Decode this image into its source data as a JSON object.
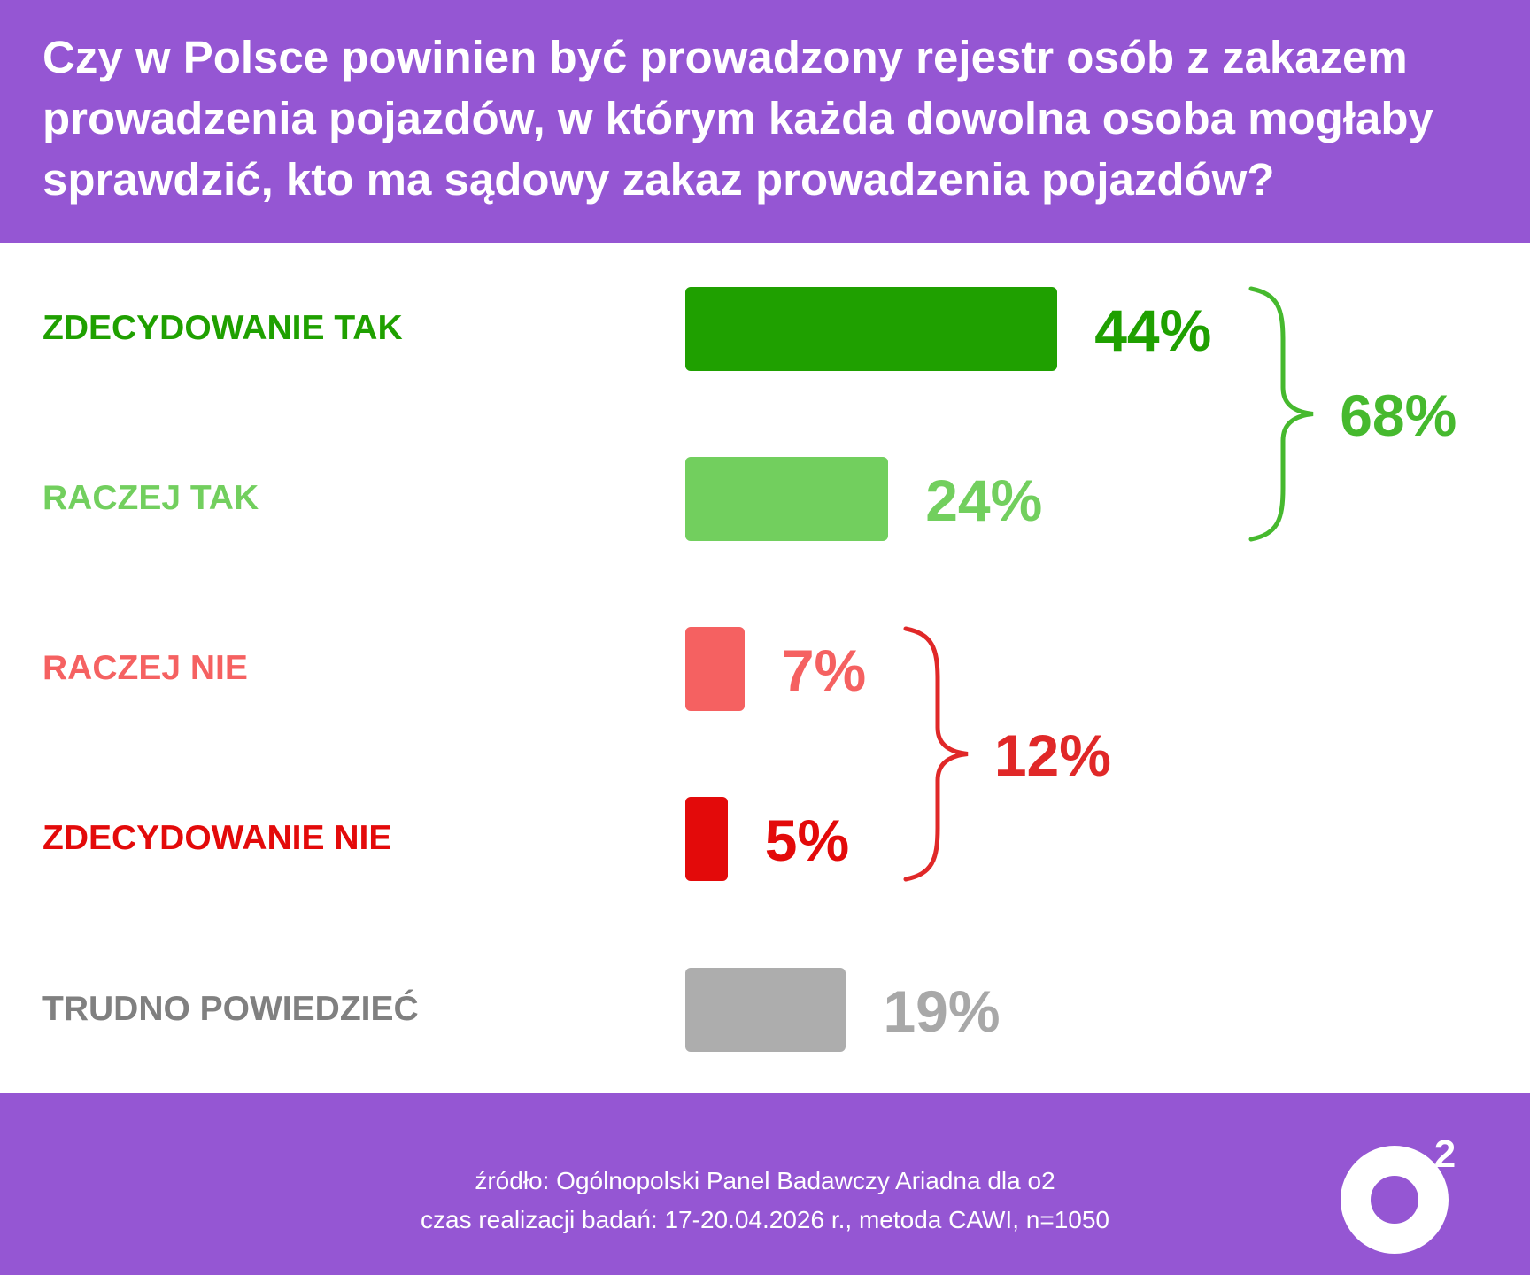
{
  "header": {
    "title": "Czy w Polsce powinien być prowadzony rejestr osób z zakazem prowadzenia pojazdów, w którym każda dowolna osoba mogłaby sprawdzić, kto ma sądowy zakaz prowadzenia pojazdów?"
  },
  "chart_data": {
    "type": "bar",
    "orientation": "horizontal",
    "title": "Czy w Polsce powinien być prowadzony rejestr osób z zakazem prowadzenia pojazdów, w którym każda dowolna osoba mogłaby sprawdzić, kto ma sądowy zakaz prowadzenia pojazdów?",
    "categories": [
      "ZDECYDOWANIE TAK",
      "RACZEJ TAK",
      "RACZEJ NIE",
      "ZDECYDOWANIE NIE",
      "TRUDNO POWIEDZIEĆ"
    ],
    "values": [
      44,
      24,
      7,
      5,
      19
    ],
    "value_labels": [
      "44%",
      "24%",
      "7%",
      "5%",
      "19%"
    ],
    "colors": [
      "#1fa000",
      "#72cf5e",
      "#f56161",
      "#e30a0a",
      "#adadad"
    ],
    "groups": [
      {
        "label": "68%",
        "value": 68,
        "members": [
          0,
          1
        ],
        "color": "#46b92e"
      },
      {
        "label": "12%",
        "value": 12,
        "members": [
          2,
          3
        ],
        "color": "#e02828"
      }
    ],
    "xlim": [
      0,
      50
    ],
    "grid": false,
    "legend": "none"
  },
  "footer": {
    "source": "źródło: Ogólnopolski Panel Badawczy Ariadna dla o2",
    "details": "czas realizacji badań: 17-20.04.2026 r., metoda CAWI, n=1050",
    "logo_text": "o2",
    "logo_superscript": "2"
  }
}
